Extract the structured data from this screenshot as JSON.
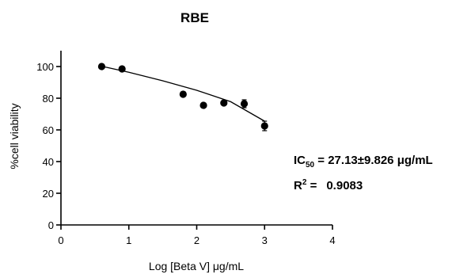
{
  "chart_data": {
    "type": "scatter",
    "title": "RBE",
    "xlabel": "Log [Beta V] μg/mL",
    "ylabel": "%cell viability",
    "xlim": [
      0,
      4
    ],
    "ylim": [
      0,
      110
    ],
    "x_ticks": [
      "0",
      "1",
      "2",
      "3",
      "4"
    ],
    "y_ticks": [
      "0",
      "20",
      "40",
      "60",
      "80",
      "100"
    ],
    "grid": false,
    "series": [
      {
        "points": [
          {
            "x": 0.6,
            "y": 100.0,
            "err": 0.8
          },
          {
            "x": 0.9,
            "y": 98.5,
            "err": 0.8
          },
          {
            "x": 1.8,
            "y": 82.5,
            "err": 1.5
          },
          {
            "x": 2.1,
            "y": 75.5,
            "err": 1.2
          },
          {
            "x": 2.4,
            "y": 77.0,
            "err": 1.2
          },
          {
            "x": 2.7,
            "y": 76.5,
            "err": 2.5
          },
          {
            "x": 3.0,
            "y": 62.5,
            "err": 3.0
          }
        ],
        "fit": [
          {
            "x": 0.6,
            "y": 100.2
          },
          {
            "x": 1.0,
            "y": 96.4
          },
          {
            "x": 1.5,
            "y": 91.0
          },
          {
            "x": 2.0,
            "y": 85.0
          },
          {
            "x": 2.5,
            "y": 77.8
          },
          {
            "x": 3.0,
            "y": 65.5
          }
        ]
      }
    ],
    "annotations": {
      "ic50_label": "IC",
      "ic50_sub": "50",
      "ic50_value": " = 27.13±9.826 μg/mL",
      "r2_label": "R",
      "r2_sup": "2",
      "r2_eq": " =",
      "r2_value": "0.9083"
    }
  }
}
